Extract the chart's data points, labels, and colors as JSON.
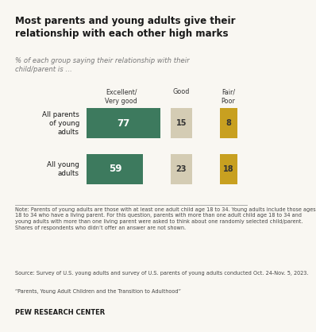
{
  "title": "Most parents and young adults give their\nrelationship with each other high marks",
  "subtitle": "% of each group saying their relationship with their\nchild/parent is …",
  "categories": [
    "All parents\nof young\nadults",
    "All young\nadults"
  ],
  "col_headers": [
    "Excellent/\nVery good",
    "Good",
    "Fair/\nPoor"
  ],
  "values": [
    [
      77,
      15,
      8
    ],
    [
      59,
      23,
      18
    ]
  ],
  "bar_colors": [
    "#3d7a5e",
    "#d4ccb4",
    "#c8a020"
  ],
  "bar_text_colors": [
    "#ffffff",
    "#333333",
    "#333333"
  ],
  "note": "Note: Parents of young adults are those with at least one adult child age 18 to 34. Young adults include those ages 18 to 34 who have a living parent. For this question, parents with more than one adult child age 18 to 34 and young adults with more than one living parent were asked to think about one randomly selected child/parent. Shares of respondents who didn’t offer an answer are not shown.",
  "source": "Source: Survey of U.S. young adults and survey of U.S. parents of young adults conducted Oct. 24-Nov. 5, 2023.",
  "quote": "“Parents, Young Adult Children and the Transition to Adulthood”",
  "branding": "PEW RESEARCH CENTER",
  "bg_color": "#f9f7f2",
  "title_color": "#1a1a1a",
  "subtitle_color": "#777777",
  "note_color": "#444444"
}
